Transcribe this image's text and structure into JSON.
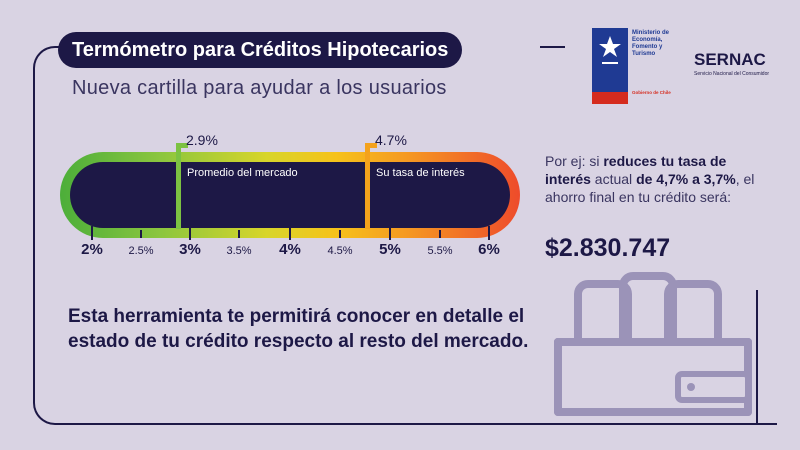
{
  "header": {
    "title": "Termómetro para Créditos Hipotecarios",
    "subtitle": "Nueva cartilla para ayudar a los usuarios"
  },
  "logos": {
    "gobierno_lines": [
      "Ministerio de",
      "Economía,",
      "Fomento y",
      "Turismo"
    ],
    "gobierno_sub": "Gobierno de Chile",
    "sernac": "SERNAC",
    "sernac_sub": "Servicio Nacional del Consumidor"
  },
  "thermometer": {
    "scale": [
      "2%",
      "2.5%",
      "3%",
      "3.5%",
      "4%",
      "4.5%",
      "5%",
      "5.5%",
      "6%"
    ],
    "range": [
      2,
      6
    ],
    "markers": [
      {
        "value": 2.9,
        "value_label": "2.9%",
        "label": "Promedio del mercado",
        "color": "#7cc242"
      },
      {
        "value": 4.7,
        "value_label": "4.7%",
        "label": "Su tasa de interés",
        "color": "#f4a21c"
      }
    ],
    "gradient": [
      "#4cae3a",
      "#d8d52a",
      "#f6c21a",
      "#ee4b2b"
    ],
    "fill": "#1d1846"
  },
  "example": {
    "t1": "Por ej: si ",
    "b1": "reduces tu tasa de interés",
    "t2": " actual ",
    "b2": "de 4,7% a 3,7%",
    "t3": ", el ahorro final en tu crédito será:",
    "amount": "$2.830.747"
  },
  "body": {
    "text": "Esta herramienta te permitirá conocer en detalle el estado de tu crédito respecto al resto del mercado."
  },
  "colors": {
    "navy": "#1d1846",
    "background": "#d9d3e3",
    "wallet": "#9b93b8"
  },
  "icons": [
    "wallet-icon",
    "gobierno-logo",
    "sernac-logo"
  ]
}
